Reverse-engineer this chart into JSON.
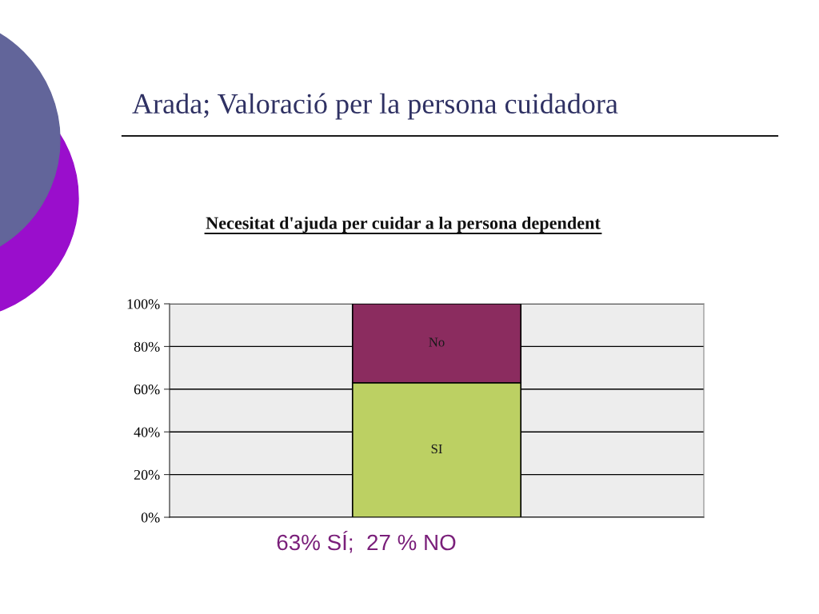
{
  "chart_data": {
    "type": "bar",
    "title": "Arada; Valoració per la persona cuidadora",
    "subtitle": "Necesitat d'ajuda per cuidar a la persona dependent",
    "categories": [
      null
    ],
    "stacked": true,
    "series": [
      {
        "name": "SI",
        "color": "#bcd063",
        "values": [
          63
        ]
      },
      {
        "name": "No",
        "color": "#8b2c5f",
        "values": [
          37
        ]
      }
    ],
    "ylim": [
      0,
      100
    ],
    "yticks": [
      {
        "value": 0,
        "label": "0%"
      },
      {
        "value": 20,
        "label": "20%"
      },
      {
        "value": 40,
        "label": "40%"
      },
      {
        "value": 60,
        "label": "60%"
      },
      {
        "value": 80,
        "label": "80%"
      },
      {
        "value": 100,
        "label": "100%"
      }
    ],
    "grid": "y",
    "tick_labels": "y",
    "annotations": [
      "63% SÍ;  27 % NO"
    ]
  }
}
